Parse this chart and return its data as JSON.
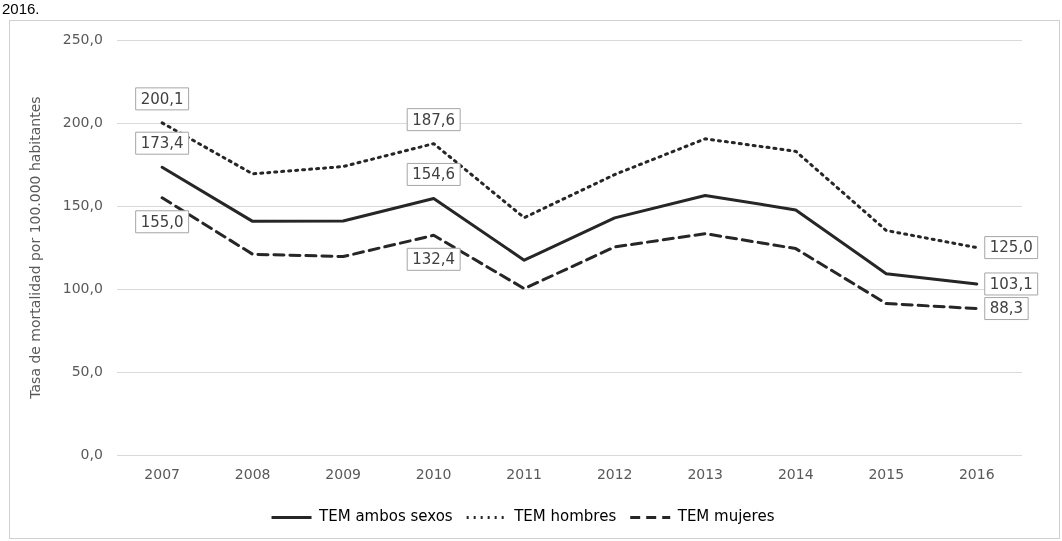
{
  "chart_data": {
    "type": "line",
    "ylabel": "Tasa de mortalidad por 100.000 habitantes",
    "annotations": [
      "2016."
    ],
    "categories": [
      "2007",
      "2008",
      "2009",
      "2010",
      "2011",
      "2012",
      "2013",
      "2014",
      "2015",
      "2016"
    ],
    "series": [
      {
        "name": "TEM ambos sexos",
        "color": "#262626",
        "line_style": "solid",
        "values": [
          173.4,
          140.8,
          141,
          154.6,
          117.4,
          142.9,
          156.4,
          147.7,
          109.3,
          103.1
        ],
        "value_labels": [
          "173,4",
          null,
          null,
          "154,6",
          null,
          null,
          null,
          null,
          null,
          "103,1"
        ]
      },
      {
        "name": "TEM hombres",
        "color": "#262626",
        "line_style": "dotted",
        "values": [
          200.1,
          169.4,
          173.8,
          187.6,
          143,
          169,
          190.5,
          183,
          135.3,
          125.0
        ],
        "value_labels": [
          "200,1",
          null,
          null,
          "187,6",
          null,
          null,
          null,
          null,
          null,
          "125,0"
        ]
      },
      {
        "name": "TEM mujeres",
        "color": "#262626",
        "line_style": "dashed",
        "values": [
          155.0,
          121,
          119.6,
          132.4,
          100.3,
          125.4,
          133.4,
          124.4,
          91.3,
          88.3
        ],
        "value_labels": [
          "155,0",
          null,
          null,
          "132,4",
          null,
          null,
          null,
          null,
          null,
          "88,3"
        ]
      }
    ],
    "ylim": [
      0,
      250
    ],
    "yticks": [
      {
        "value": 0,
        "label": "0,0"
      },
      {
        "value": 50,
        "label": "50,0"
      },
      {
        "value": 100,
        "label": "100,0"
      },
      {
        "value": 150,
        "label": "150,0"
      },
      {
        "value": 200,
        "label": "200,0"
      },
      {
        "value": 250,
        "label": "250,0"
      }
    ],
    "grid": "y",
    "legend": "bottom",
    "marker": "none"
  }
}
